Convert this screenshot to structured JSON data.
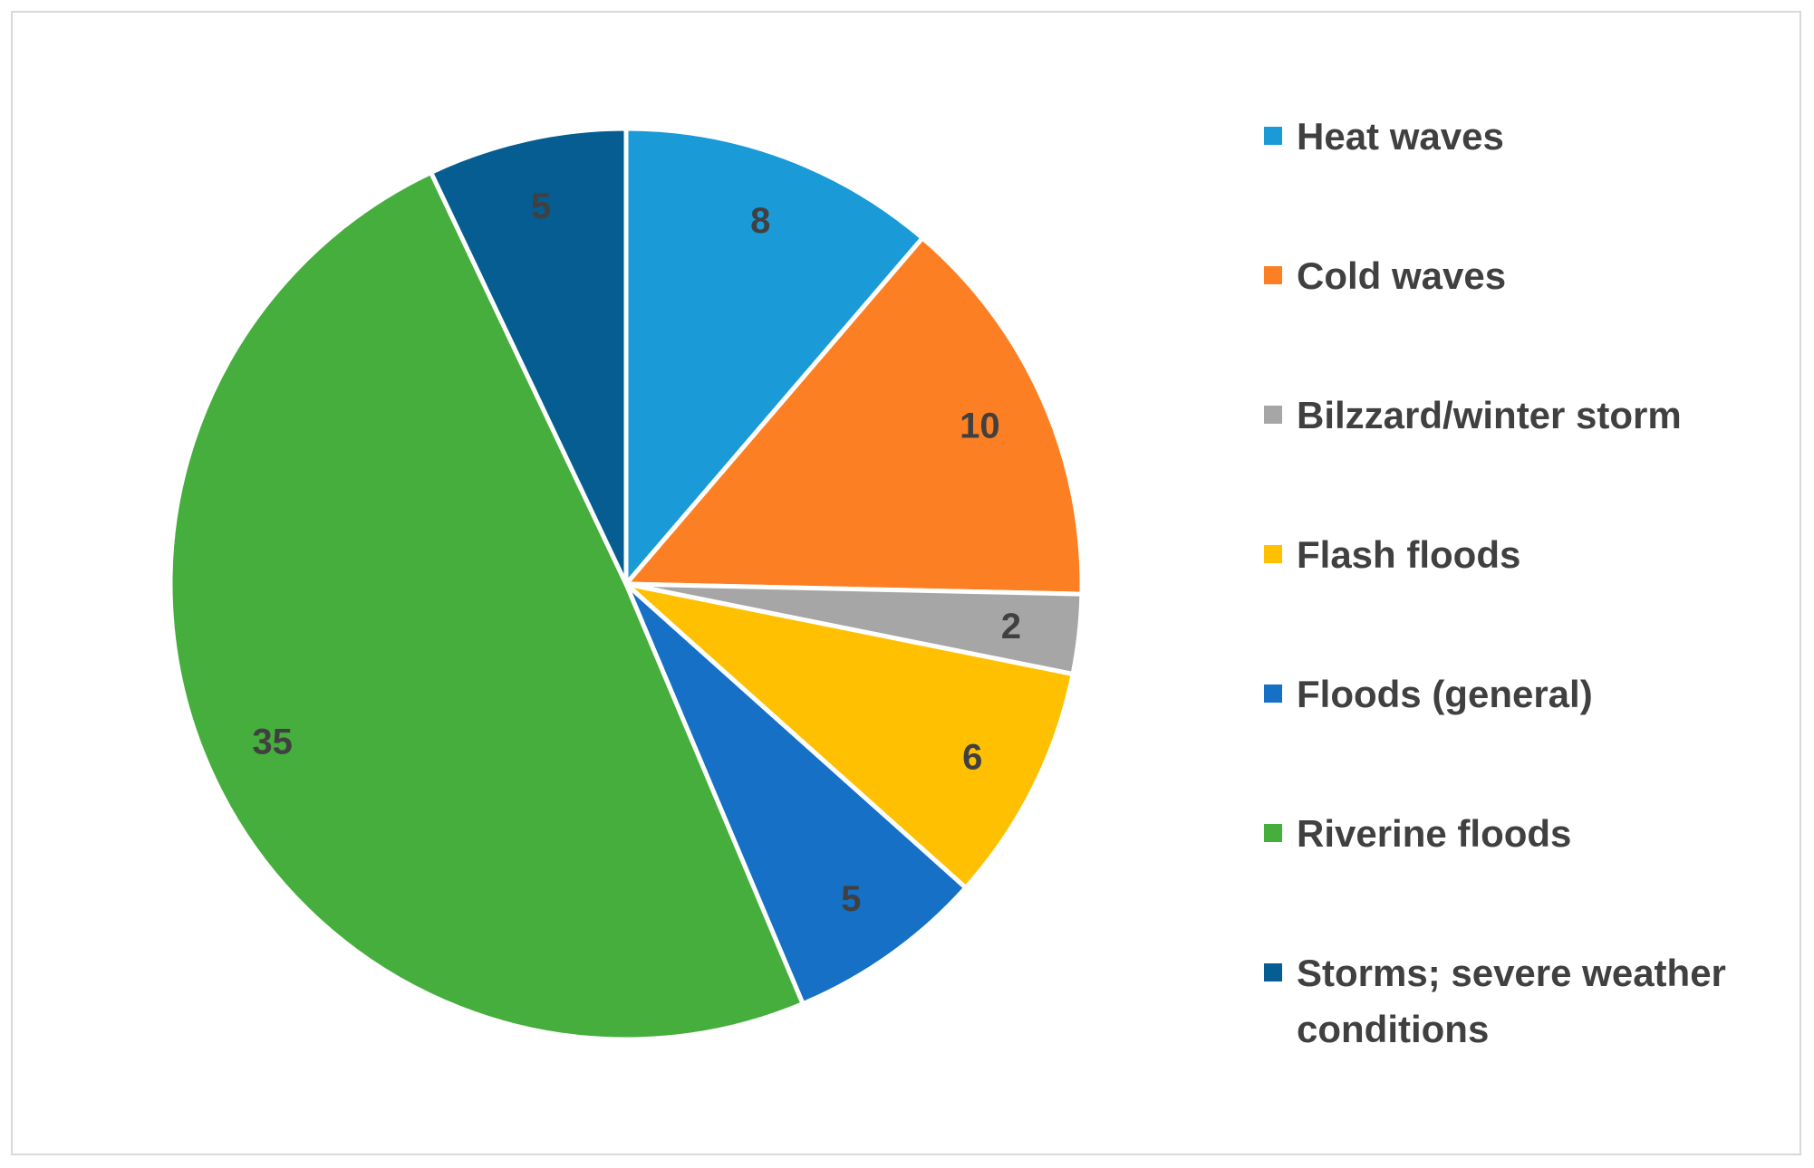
{
  "chart_data": {
    "type": "pie",
    "title": "",
    "categories": [
      "Heat waves",
      "Cold waves",
      "Bilzzard/winter storm",
      "Flash floods",
      "Floods (general)",
      "Riverine floods",
      "Storms; severe weather conditions"
    ],
    "values": [
      8,
      10,
      2,
      6,
      5,
      35,
      5
    ],
    "data_labels": [
      "8",
      "10",
      "2",
      "6",
      "5",
      "35",
      "5"
    ],
    "colors": [
      "#1a9ad6",
      "#fd7f24",
      "#a6a6a6",
      "#fec000",
      "#1570c6",
      "#45ae3d",
      "#055d91"
    ],
    "legend_position": "right",
    "start_angle": "12 o'clock",
    "direction": "clockwise"
  }
}
